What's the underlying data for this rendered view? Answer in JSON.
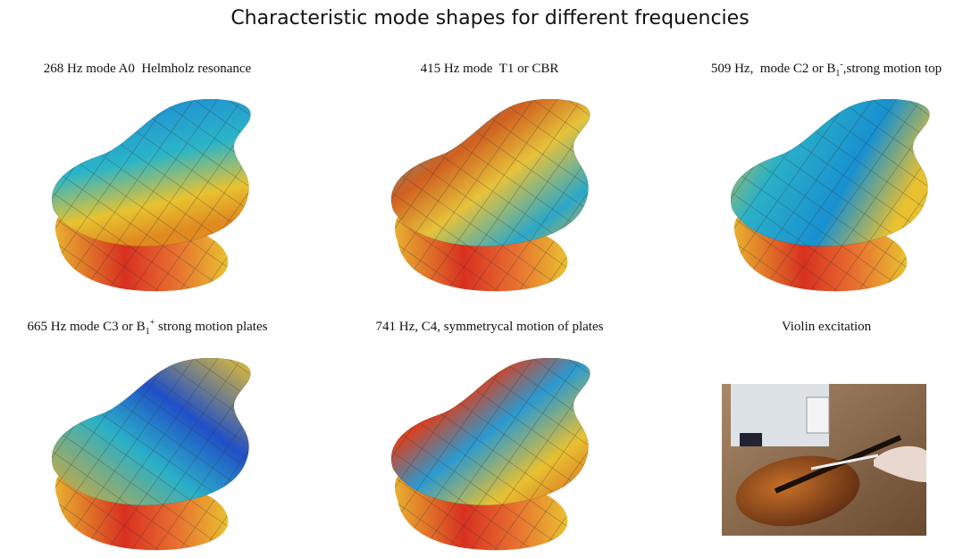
{
  "header": {
    "title": "Characteristic mode shapes for different frequencies"
  },
  "panels": [
    {
      "caption": "268 Hz mode A0  Helmholz resonance"
    },
    {
      "caption": "415 Hz mode  T1 or CBR"
    },
    {
      "caption": "509 Hz,  mode C2 or B",
      "subscript": "1",
      "superscript": "-",
      "caption_end": ",strong motion top"
    },
    {
      "caption": "665 Hz mode C3 or B",
      "subscript": "1",
      "superscript": "+",
      "caption_end": " strong motion plates"
    },
    {
      "caption": "741 Hz, C4, symmetrycal motion of plates"
    },
    {
      "caption": "Violin excitation"
    }
  ]
}
